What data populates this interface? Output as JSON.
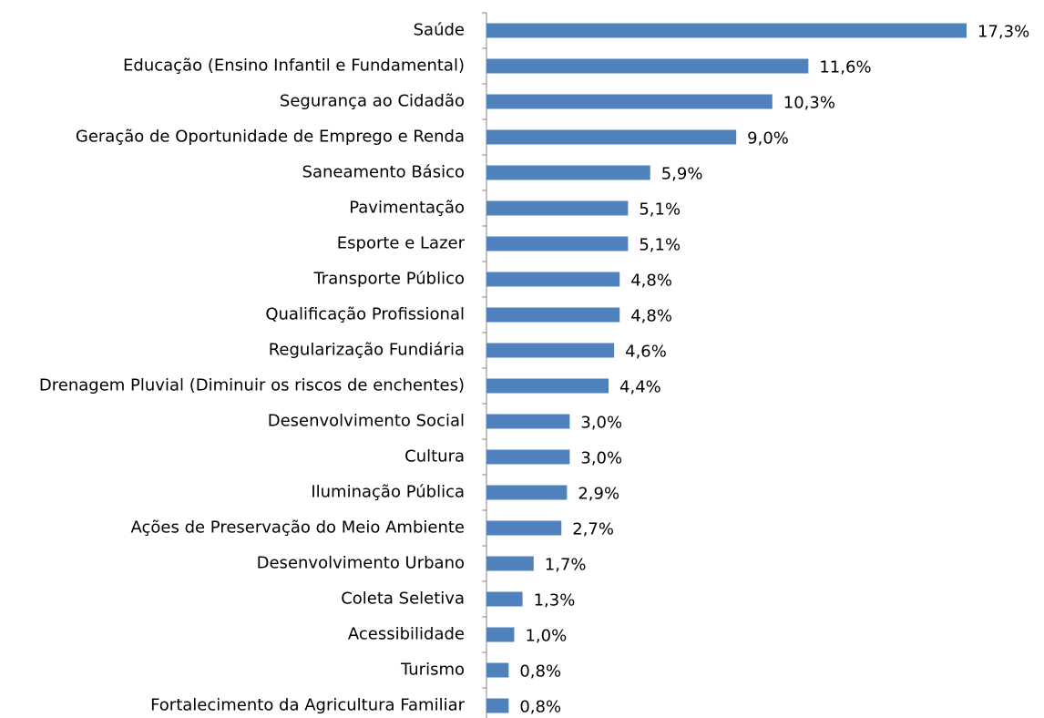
{
  "chart_data": {
    "type": "bar",
    "orientation": "horizontal",
    "color": "#4f81bd",
    "categories": [
      "Saúde",
      "Educação (Ensino Infantil e Fundamental)",
      "Segurança ao Cidadão",
      "Geração de Oportunidade de Emprego e Renda",
      "Saneamento Básico",
      "Pavimentação",
      "Esporte e Lazer",
      "Transporte Público",
      "Qualificação Profissional",
      "Regularização Fundiária",
      "Drenagem Pluvial (Diminuir os riscos de enchentes)",
      "Desenvolvimento Social",
      "Cultura",
      "Iluminação Pública",
      "Ações de Preservação do Meio Ambiente",
      "Desenvolvimento Urbano",
      "Coleta Seletiva",
      "Acessibilidade",
      "Turismo",
      "Fortalecimento da Agricultura Familiar"
    ],
    "values": [
      17.3,
      11.6,
      10.3,
      9.0,
      5.9,
      5.1,
      5.1,
      4.8,
      4.8,
      4.6,
      4.4,
      3.0,
      3.0,
      2.9,
      2.7,
      1.7,
      1.3,
      1.0,
      0.8,
      0.8
    ],
    "value_labels": [
      "17,3%",
      "11,6%",
      "10,3%",
      "9,0%",
      "5,9%",
      "5,1%",
      "5,1%",
      "4,8%",
      "4,8%",
      "4,6%",
      "4,4%",
      "3,0%",
      "3,0%",
      "2,9%",
      "2,7%",
      "1,7%",
      "1,3%",
      "1,0%",
      "0,8%",
      "0,8%"
    ]
  }
}
